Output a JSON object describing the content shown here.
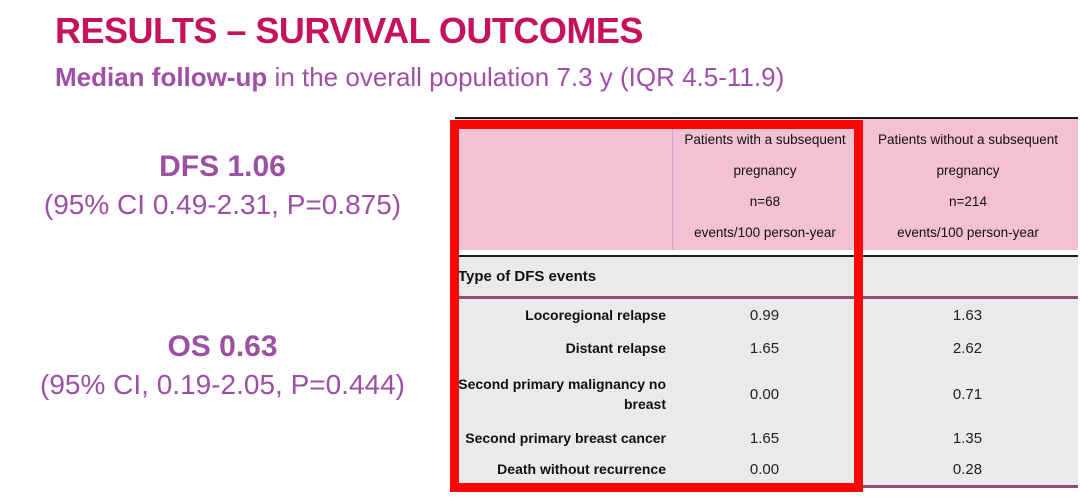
{
  "slide": {
    "title": "RESULTS – SURVIVAL OUTCOMES",
    "subtitle_bold": "Median follow-up",
    "subtitle_rest": " in the overall population 7.3 y (IQR 4.5-11.9)"
  },
  "stats": [
    {
      "headline": "DFS 1.06",
      "detail": "(95% CI 0.49-2.31, P=0.875)"
    },
    {
      "headline": "OS 0.63",
      "detail": "(95% CI, 0.19-2.05, P=0.444)"
    }
  ],
  "table": {
    "columns": [
      {
        "line1": "Patients with a subsequent",
        "line2": "pregnancy",
        "n": "n=68",
        "unit": "events/100 person-year"
      },
      {
        "line1": "Patients without a subsequent",
        "line2": "pregnancy",
        "n": "n=214",
        "unit": "events/100 person-year"
      }
    ],
    "section_label": "Type of DFS events",
    "rows": [
      {
        "label": "Locoregional relapse",
        "with_pregnancy": "0.99",
        "without_pregnancy": "1.63"
      },
      {
        "label": "Distant relapse",
        "with_pregnancy": "1.65",
        "without_pregnancy": "2.62"
      },
      {
        "label": "Second primary malignancy no breast",
        "with_pregnancy": "0.00",
        "without_pregnancy": "0.71"
      },
      {
        "label": "Second primary breast cancer",
        "with_pregnancy": "1.65",
        "without_pregnancy": "1.35"
      },
      {
        "label": "Death without recurrence",
        "with_pregnancy": "0.00",
        "without_pregnancy": "0.28"
      }
    ]
  },
  "colors": {
    "title_magenta": "#C5115E",
    "body_purple": "#9B50A3",
    "header_pink": "#F3C0D4",
    "table_gray": "#E8EAEC",
    "rule_purple": "#8C4E76",
    "rule_black": "#1A1A1A",
    "highlight_red": "#FA0606"
  }
}
